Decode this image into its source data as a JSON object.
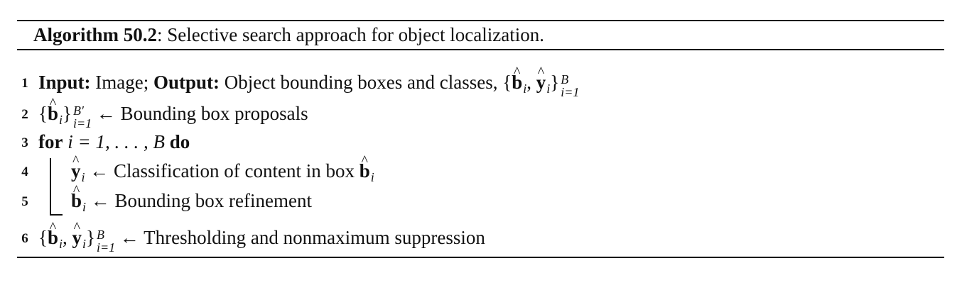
{
  "caption": {
    "label": "Algorithm 50.2",
    "text": ": Selective search approach for object localization."
  },
  "lines": [
    {
      "number": "1",
      "input_kw": "Input:",
      "input_text": " Image; ",
      "output_kw": "Output:",
      "output_text": " Object bounding boxes and classes, {",
      "b": "b",
      "i": "i",
      "comma": ", ",
      "y": "y",
      "close": "}",
      "sup": "B",
      "sub": "i=1"
    },
    {
      "number": "2",
      "open": "{",
      "b": "b",
      "i": "i",
      "close": "}",
      "sup": "B′",
      "sub": "i=1",
      "text": " ← Bounding box proposals"
    },
    {
      "number": "3",
      "for_kw": "for",
      "range": " i = 1, . . . , B ",
      "do_kw": "do"
    },
    {
      "number": "4",
      "y": "y",
      "i": "i",
      "text": " ← Classification of content in box ",
      "b": "b",
      "i2": "i"
    },
    {
      "number": "5",
      "b": "b",
      "i": "i",
      "text": " ← Bounding box refinement"
    },
    {
      "number": "6",
      "open": "{",
      "b": "b",
      "i": "i",
      "comma": ", ",
      "y": "y",
      "close": "}",
      "sup": "B",
      "sub": "i=1",
      "text": " ← Thresholding and nonmaximum suppression"
    }
  ]
}
